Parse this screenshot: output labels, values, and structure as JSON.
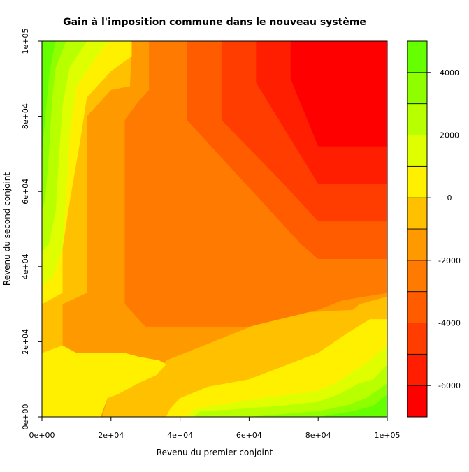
{
  "chart_data": {
    "type": "heatmap",
    "subtype": "filled-contour",
    "title": "Gain à l'imposition commune dans le nouveau système",
    "xlabel": "Revenu du premier conjoint",
    "ylabel": "Revenu du second conjoint",
    "xlim": [
      0,
      100000
    ],
    "ylim": [
      0,
      100000
    ],
    "x_ticks": [
      0,
      20000,
      40000,
      60000,
      80000,
      100000
    ],
    "x_tick_labels": [
      "0e+00",
      "2e+04",
      "4e+04",
      "6e+04",
      "8e+04",
      "1e+05"
    ],
    "y_ticks": [
      0,
      20000,
      40000,
      60000,
      80000,
      100000
    ],
    "y_tick_labels": [
      "0e+00",
      "2e+04",
      "4e+04",
      "6e+04",
      "8e+04",
      "1e+05"
    ],
    "colorbar": {
      "levels": [
        -7000,
        -6000,
        -5000,
        -4000,
        -3000,
        -2000,
        -1000,
        0,
        1000,
        2000,
        3000,
        4000,
        5000
      ],
      "colors": [
        "#FF0000",
        "#FF1E00",
        "#FF3D00",
        "#FF5C00",
        "#FF7A00",
        "#FF9900",
        "#FFC000",
        "#FFF000",
        "#DFFF00",
        "#B8FF00",
        "#8FFF00",
        "#66FF00",
        "#33FF00"
      ],
      "tick_values": [
        -6000,
        -4000,
        -2000,
        0,
        2000,
        4000
      ],
      "tick_labels": [
        "-6000",
        "-4000",
        "-2000",
        "0",
        "2000",
        "4000"
      ]
    },
    "regions": [
      {
        "level": "-1000 to 0",
        "polygon": [
          [
            0,
            0
          ],
          [
            100000,
            0
          ],
          [
            100000,
            100000
          ],
          [
            0,
            100000
          ]
        ]
      },
      {
        "level": "-2000 to -1000",
        "polygon": [
          [
            0,
            17000
          ],
          [
            6000,
            19000
          ],
          [
            6000,
            30000
          ],
          [
            13000,
            33000
          ],
          [
            13000,
            45000
          ],
          [
            13000,
            80000
          ],
          [
            16000,
            83000
          ],
          [
            20000,
            87000
          ],
          [
            25500,
            88000
          ],
          [
            26000,
            100000
          ],
          [
            100000,
            100000
          ],
          [
            100000,
            32000
          ],
          [
            92000,
            30000
          ],
          [
            90000,
            28500
          ],
          [
            70000,
            27500
          ],
          [
            36000,
            15000
          ],
          [
            33000,
            11000
          ],
          [
            28000,
            9000
          ],
          [
            22000,
            6000
          ],
          [
            19000,
            5000
          ],
          [
            17500,
            0
          ],
          [
            0,
            0
          ]
        ]
      },
      {
        "level": "-3000 to -2000",
        "polygon": [
          [
            24000,
            30000
          ],
          [
            24000,
            79000
          ],
          [
            28000,
            84000
          ],
          [
            31000,
            87000
          ],
          [
            31000,
            100000
          ],
          [
            100000,
            100000
          ],
          [
            100000,
            33000
          ],
          [
            87000,
            31000
          ],
          [
            80000,
            28500
          ],
          [
            60000,
            24000
          ],
          [
            30000,
            24000
          ]
        ]
      },
      {
        "level": "-4000 to -3000",
        "polygon": [
          [
            42000,
            79000
          ],
          [
            42000,
            100000
          ],
          [
            100000,
            100000
          ],
          [
            100000,
            42000
          ],
          [
            80000,
            42000
          ],
          [
            75000,
            46000
          ],
          [
            55000,
            66000
          ],
          [
            47000,
            74000
          ]
        ]
      },
      {
        "level": "-5000 to -4000",
        "polygon": [
          [
            52000,
            79000
          ],
          [
            52000,
            100000
          ],
          [
            100000,
            100000
          ],
          [
            100000,
            52000
          ],
          [
            80000,
            52000
          ],
          [
            70000,
            62000
          ]
        ]
      },
      {
        "level": "-6000 to -5000",
        "polygon": [
          [
            62000,
            89000
          ],
          [
            62000,
            100000
          ],
          [
            100000,
            100000
          ],
          [
            100000,
            62000
          ],
          [
            80000,
            62000
          ]
        ]
      },
      {
        "level": "-7000 to -6000",
        "polygon": [
          [
            72000,
            90000
          ],
          [
            72000,
            100000
          ],
          [
            100000,
            100000
          ],
          [
            100000,
            72000
          ],
          [
            80000,
            72000
          ]
        ]
      },
      {
        "level": "-2000 to -1000",
        "polygon": [
          [
            12000,
            13000
          ],
          [
            13000,
            15000
          ],
          [
            14000,
            14000
          ],
          [
            15500,
            13500
          ],
          [
            14000,
            12000
          ],
          [
            13000,
            11000
          ]
        ]
      },
      {
        "level": "0 to 1000",
        "polygon": [
          [
            0,
            30000
          ],
          [
            6000,
            33000
          ],
          [
            6000,
            45000
          ],
          [
            8000,
            57000
          ],
          [
            11000,
            73000
          ],
          [
            13000,
            85000
          ],
          [
            20000,
            92000
          ],
          [
            26000,
            96000
          ],
          [
            26000,
            100000
          ],
          [
            0,
            100000
          ]
        ]
      },
      {
        "level": "1000 to 2000",
        "polygon": [
          [
            0,
            35000
          ],
          [
            3000,
            37000
          ],
          [
            6000,
            45000
          ],
          [
            7000,
            58000
          ],
          [
            8000,
            75000
          ],
          [
            10000,
            88000
          ],
          [
            16000,
            96000
          ],
          [
            19000,
            100000
          ],
          [
            0,
            100000
          ]
        ]
      },
      {
        "level": "2000 to 3000",
        "polygon": [
          [
            0,
            44000
          ],
          [
            2000,
            46000
          ],
          [
            4000,
            55000
          ],
          [
            5000,
            70000
          ],
          [
            6000,
            83000
          ],
          [
            8000,
            93000
          ],
          [
            13000,
            100000
          ],
          [
            0,
            100000
          ]
        ]
      },
      {
        "level": "3000 to 4000",
        "polygon": [
          [
            0,
            55000
          ],
          [
            1000,
            58000
          ],
          [
            2000,
            70000
          ],
          [
            3000,
            85000
          ],
          [
            4000,
            93000
          ],
          [
            7000,
            100000
          ],
          [
            0,
            100000
          ]
        ]
      },
      {
        "level": "4000 to 5000",
        "polygon": [
          [
            0,
            70000
          ],
          [
            1000,
            80000
          ],
          [
            2000,
            90000
          ],
          [
            3000,
            96000
          ],
          [
            4000,
            100000
          ],
          [
            0,
            100000
          ]
        ]
      },
      {
        "level": "0 to 1000",
        "polygon": [
          [
            36000,
            0
          ],
          [
            37000,
            2000
          ],
          [
            40000,
            5000
          ],
          [
            48000,
            8000
          ],
          [
            60000,
            10000
          ],
          [
            80000,
            17000
          ],
          [
            88000,
            22000
          ],
          [
            95000,
            26000
          ],
          [
            100000,
            26000
          ],
          [
            100000,
            0
          ]
        ]
      },
      {
        "level": "1000 to 2000",
        "polygon": [
          [
            42000,
            0
          ],
          [
            44000,
            2000
          ],
          [
            50000,
            3000
          ],
          [
            64000,
            5000
          ],
          [
            80000,
            7000
          ],
          [
            85000,
            9000
          ],
          [
            90000,
            12000
          ],
          [
            95000,
            15000
          ],
          [
            100000,
            19000
          ],
          [
            100000,
            0
          ]
        ]
      },
      {
        "level": "2000 to 3000",
        "polygon": [
          [
            44000,
            0
          ],
          [
            46000,
            1500
          ],
          [
            56000,
            2000
          ],
          [
            70000,
            3000
          ],
          [
            80000,
            4000
          ],
          [
            86000,
            6000
          ],
          [
            92000,
            9000
          ],
          [
            96000,
            10000
          ],
          [
            100000,
            14000
          ],
          [
            100000,
            0
          ]
        ]
      },
      {
        "level": "3000 to 4000",
        "polygon": [
          [
            60000,
            0
          ],
          [
            80000,
            1500
          ],
          [
            88000,
            3000
          ],
          [
            94000,
            5000
          ],
          [
            100000,
            9000
          ],
          [
            100000,
            0
          ]
        ]
      },
      {
        "level": "4000 to 5000",
        "polygon": [
          [
            80000,
            0
          ],
          [
            90000,
            1500
          ],
          [
            96000,
            3000
          ],
          [
            100000,
            6000
          ],
          [
            100000,
            0
          ]
        ]
      },
      {
        "level": "0 to 1000",
        "polygon": [
          [
            0,
            0
          ],
          [
            17000,
            0
          ],
          [
            19000,
            5000
          ],
          [
            22000,
            6000
          ],
          [
            28000,
            9000
          ],
          [
            33000,
            11000
          ],
          [
            36000,
            14000
          ],
          [
            34000,
            15000
          ],
          [
            28000,
            16000
          ],
          [
            24000,
            17000
          ],
          [
            10000,
            17000
          ],
          [
            6000,
            19000
          ],
          [
            0,
            17000
          ]
        ]
      }
    ]
  }
}
